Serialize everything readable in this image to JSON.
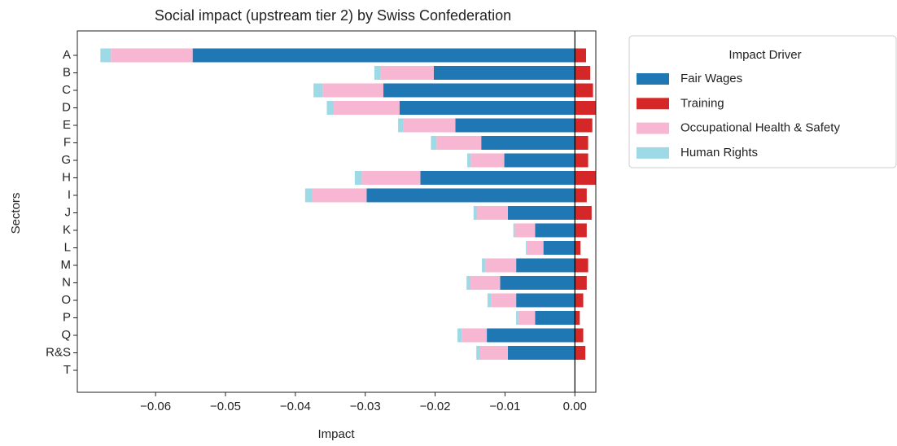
{
  "chart_data": {
    "type": "bar",
    "orientation": "horizontal",
    "stacked": true,
    "title": "Social impact (upstream tier 2) by Swiss Confederation",
    "x_label": "Impact",
    "y_label": "Sectors",
    "categories": [
      "A",
      "B",
      "C",
      "D",
      "E",
      "F",
      "G",
      "H",
      "I",
      "J",
      "K",
      "L",
      "M",
      "N",
      "O",
      "P",
      "Q",
      "R&S",
      "T"
    ],
    "series": [
      {
        "name": "Fair Wages",
        "color": "#1f77b4",
        "values": [
          -0.0547,
          -0.0202,
          -0.0274,
          -0.0251,
          -0.0171,
          -0.0134,
          -0.0101,
          -0.0221,
          -0.0298,
          -0.0096,
          -0.0057,
          -0.0045,
          -0.0084,
          -0.0107,
          -0.0084,
          -0.0057,
          -0.0126,
          -0.0096,
          0
        ]
      },
      {
        "name": "Training",
        "color": "#d62728",
        "values": [
          0.0016,
          0.0022,
          0.0026,
          0.0032,
          0.0025,
          0.0019,
          0.0019,
          0.0035,
          0.0017,
          0.0024,
          0.0017,
          0.0008,
          0.0019,
          0.0017,
          0.0012,
          0.0007,
          0.0012,
          0.0015,
          0
        ]
      },
      {
        "name": "Occupational Health & Safety",
        "color": "#f7b6d2",
        "values": [
          -0.0117,
          -0.0076,
          -0.0087,
          -0.0094,
          -0.0075,
          -0.0064,
          -0.0048,
          -0.0084,
          -0.0078,
          -0.0044,
          -0.0029,
          -0.0023,
          -0.0044,
          -0.0043,
          -0.0036,
          -0.0024,
          -0.0036,
          -0.004,
          0
        ]
      },
      {
        "name": "Human Rights",
        "color": "#9edae5",
        "values": [
          -0.0015,
          -0.0009,
          -0.0013,
          -0.001,
          -0.0007,
          -0.0008,
          -0.0005,
          -0.001,
          -0.001,
          -0.0005,
          -0.0002,
          -0.0002,
          -0.0005,
          -0.0005,
          -0.0005,
          -0.0003,
          -0.0006,
          -0.0005,
          0
        ]
      }
    ],
    "xlim": [
      -0.0712,
      0.003
    ],
    "xticks": [
      {
        "value": -0.06,
        "label": "−0.06"
      },
      {
        "value": -0.05,
        "label": "−0.05"
      },
      {
        "value": -0.04,
        "label": "−0.04"
      },
      {
        "value": -0.03,
        "label": "−0.03"
      },
      {
        "value": -0.02,
        "label": "−0.02"
      },
      {
        "value": -0.01,
        "label": "−0.01"
      },
      {
        "value": 0,
        "label": "0.00"
      }
    ],
    "legend_title": "Impact Driver",
    "legend_position": "outside right",
    "zero_line": true
  }
}
